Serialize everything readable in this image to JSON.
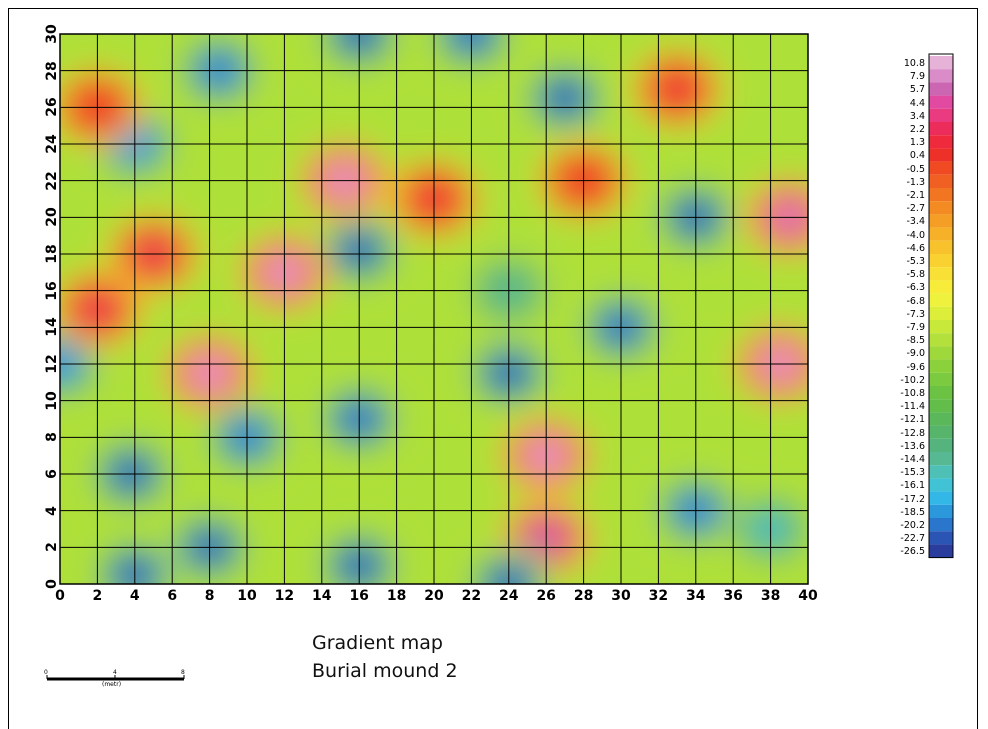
{
  "chart_data": {
    "type": "heatmap",
    "title_lines": [
      "Gradient map",
      "Burial mound 2"
    ],
    "x_ticks": [
      "0",
      "2",
      "4",
      "6",
      "8",
      "10",
      "12",
      "14",
      "16",
      "18",
      "20",
      "22",
      "24",
      "26",
      "28",
      "30",
      "32",
      "34",
      "36",
      "38",
      "40"
    ],
    "y_ticks": [
      "0",
      "2",
      "4",
      "6",
      "8",
      "10",
      "12",
      "14",
      "16",
      "18",
      "20",
      "22",
      "24",
      "26",
      "28",
      "30"
    ],
    "xlim": [
      0,
      40
    ],
    "ylim": [
      0,
      30
    ],
    "grid": true,
    "legend_placement": "right",
    "colorbar_labels": [
      "10.8",
      "7.9",
      "5.7",
      "4.4",
      "3.4",
      "2.2",
      "1.3",
      "0.4",
      "-0.5",
      "-1.3",
      "-2.1",
      "-2.7",
      "-3.4",
      "-4.0",
      "-4.6",
      "-5.3",
      "-5.8",
      "-6.3",
      "-6.8",
      "-7.3",
      "-7.9",
      "-8.5",
      "-9.0",
      "-9.6",
      "-10.2",
      "-10.8",
      "-11.4",
      "-12.1",
      "-12.8",
      "-13.6",
      "-14.4",
      "-15.3",
      "-16.1",
      "-17.2",
      "-18.5",
      "-20.2",
      "-22.7",
      "-26.5"
    ],
    "colorbar_colors": [
      "#e7b2d8",
      "#d98cc8",
      "#cc66b2",
      "#e14aa0",
      "#eb3b80",
      "#ec2c5a",
      "#ef2a3d",
      "#ee3128",
      "#ef4a22",
      "#f06022",
      "#f27522",
      "#f48a22",
      "#f59e25",
      "#f7b128",
      "#f8c22d",
      "#f9d232",
      "#f9e036",
      "#f8ec3a",
      "#eef23c",
      "#dcee3a",
      "#c8e83a",
      "#b3e03a",
      "#9fd83b",
      "#8bd13c",
      "#7bca3f",
      "#6cc343",
      "#62bd4b",
      "#5ab85a",
      "#56b46b",
      "#55b37e",
      "#56b994",
      "#4fc0b6",
      "#42c3d5",
      "#33b7e6",
      "#2b98dc",
      "#2a76cc",
      "#2a55b4",
      "#2a3c9c"
    ],
    "features": [
      {
        "x": 16,
        "y": 18.2,
        "value": -26.5
      },
      {
        "x": 15.2,
        "y": 22,
        "value": 10.8
      },
      {
        "x": 12,
        "y": 17,
        "value": 10.8
      },
      {
        "x": 8,
        "y": 11.5,
        "value": 10.8
      },
      {
        "x": 38.5,
        "y": 12,
        "value": 10.8
      },
      {
        "x": 39,
        "y": 20,
        "value": 7.9
      },
      {
        "x": 26,
        "y": 7,
        "value": 10.8
      },
      {
        "x": 26,
        "y": 2.5,
        "value": 5.7
      },
      {
        "x": 27,
        "y": 26.5,
        "value": -26.5
      },
      {
        "x": 24,
        "y": 11.5,
        "value": -26.5
      },
      {
        "x": 3.8,
        "y": 6,
        "value": -26.5
      },
      {
        "x": 16,
        "y": 9,
        "value": -22.7
      },
      {
        "x": 34,
        "y": 20,
        "value": -26.5
      },
      {
        "x": 16,
        "y": 1,
        "value": -26.5
      },
      {
        "x": 8,
        "y": 2,
        "value": -26.5
      },
      {
        "x": 4,
        "y": 0.5,
        "value": -26.5
      },
      {
        "x": 24,
        "y": 0,
        "value": -26.5
      },
      {
        "x": 16,
        "y": 30,
        "value": -26.5
      },
      {
        "x": 22,
        "y": 30,
        "value": -22.7
      },
      {
        "x": 8.5,
        "y": 28,
        "value": -20.2
      },
      {
        "x": 34,
        "y": 4,
        "value": -20.2
      },
      {
        "x": 38,
        "y": 3,
        "value": -16.1
      },
      {
        "x": 30,
        "y": 14,
        "value": -22.7
      },
      {
        "x": 10,
        "y": 8,
        "value": -20.2
      },
      {
        "x": 4,
        "y": 24,
        "value": -18.5
      },
      {
        "x": 0,
        "y": 12,
        "value": -18.5
      },
      {
        "x": 5,
        "y": 18,
        "value": 2.2
      },
      {
        "x": 2,
        "y": 15,
        "value": 2.2
      },
      {
        "x": 2,
        "y": 26,
        "value": 0.4
      },
      {
        "x": 33,
        "y": 27,
        "value": 1.3
      },
      {
        "x": 28,
        "y": 22,
        "value": 0.4
      },
      {
        "x": 20,
        "y": 21,
        "value": 1.3
      },
      {
        "x": 24,
        "y": 16,
        "value": -14.4
      }
    ],
    "scalebar": {
      "labels": [
        "0",
        "4",
        "8"
      ],
      "unit": "(metr)"
    }
  }
}
